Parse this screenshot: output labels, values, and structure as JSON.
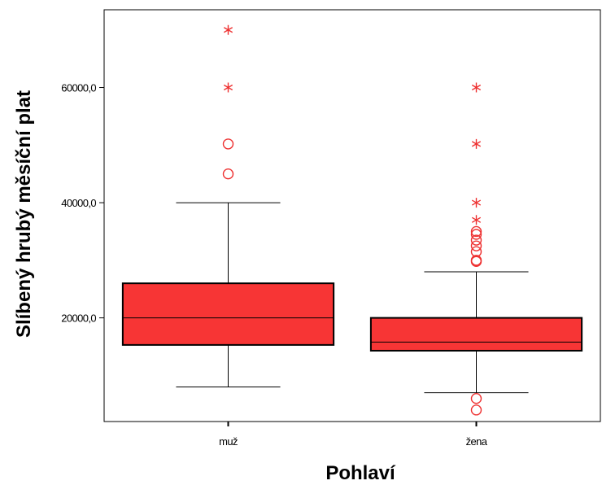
{
  "chart_data": {
    "type": "boxplot",
    "title": "",
    "xlabel": "Pohlaví",
    "ylabel": "Slíbený hrubý měsíční plat",
    "ylim": [
      2000,
      73500
    ],
    "yticks": [
      20000,
      40000,
      60000
    ],
    "ytick_labels": [
      "20000,0",
      "40000,0",
      "60000,0"
    ],
    "categories": [
      "muž",
      "žena"
    ],
    "box_color": "#f73535",
    "outlier_color": "#ee3333",
    "boxes": [
      {
        "category": "muž",
        "whisker_low": 8000,
        "q1": 15300,
        "median": 20000,
        "q3": 26000,
        "whisker_high": 40000,
        "outliers": [
          45000,
          50200
        ],
        "extremes": [
          60000,
          70000
        ]
      },
      {
        "category": "žena",
        "whisker_low": 7000,
        "q1": 14300,
        "median": 15800,
        "q3": 20000,
        "whisker_high": 28000,
        "outliers": [
          4000,
          6000,
          29800,
          30000,
          31500,
          32500,
          33500,
          34500,
          35000
        ],
        "extremes": [
          37000,
          40000,
          50200,
          60000
        ]
      }
    ]
  }
}
